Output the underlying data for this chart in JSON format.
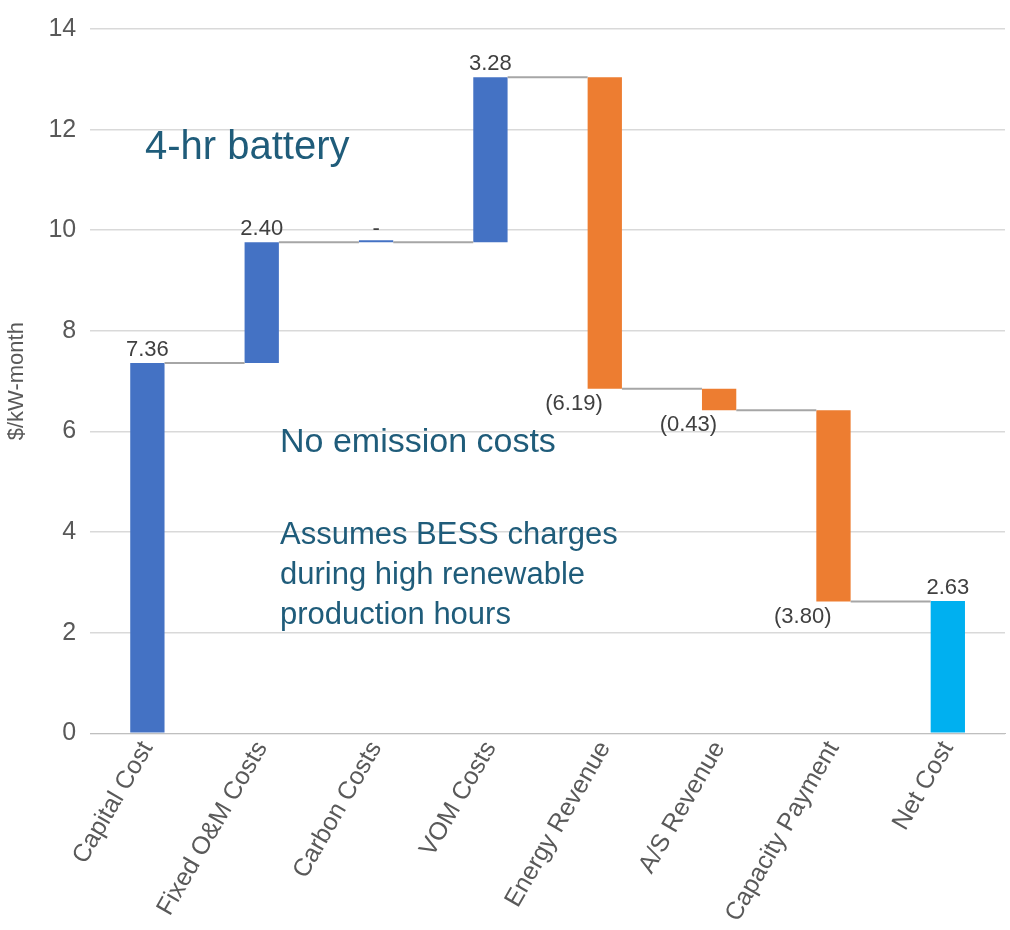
{
  "chart_data": {
    "type": "bar",
    "ylabel": "$/kW-month",
    "categories": [
      "Capital Cost",
      "Fixed O&M Costs",
      "Carbon Costs",
      "VOM Costs",
      "Energy Revenue",
      "A/S Revenue",
      "Capacity Payment",
      "Net Cost"
    ],
    "values": [
      7.36,
      2.4,
      0,
      3.28,
      -6.19,
      -0.43,
      -3.8,
      2.63
    ],
    "base": [
      0,
      7.36,
      9.76,
      9.76,
      13.04,
      6.85,
      6.42,
      0
    ],
    "colors": [
      "#4472c4",
      "#4472c4",
      "#4472c4",
      "#4472c4",
      "#ed7d31",
      "#ed7d31",
      "#ed7d31",
      "#00b0f0"
    ],
    "value_labels": [
      "7.36",
      "2.40",
      "-",
      "3.28",
      "(6.19)",
      "(0.43)",
      "(3.80)",
      "2.63"
    ],
    "ylim": [
      0,
      14
    ],
    "yticks": [
      0,
      2,
      4,
      6,
      8,
      10,
      12,
      14
    ],
    "grid": "y",
    "legend": false,
    "annotations": [
      "4-hr battery",
      "No emission costs",
      "Assumes BESS charges during high renewable production hours"
    ]
  }
}
